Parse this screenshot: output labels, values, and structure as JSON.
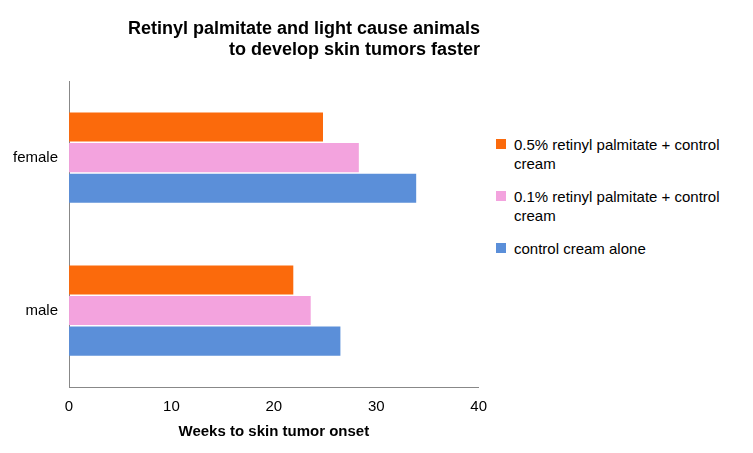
{
  "chart_data": {
    "type": "bar",
    "orientation": "horizontal",
    "title": [
      "Retinyl palmitate and light cause animals",
      "to develop skin tumors faster"
    ],
    "x_label": "Weeks to skin tumor onset",
    "categories": [
      "female",
      "male"
    ],
    "series": [
      {
        "name": "0.5% retinyl palmitate + control cream",
        "color": "#fb6a0c",
        "values": [
          24.8,
          21.9
        ]
      },
      {
        "name": "0.1% retinyl palmitate + control cream",
        "color": "#f3a3de",
        "values": [
          28.3,
          23.6
        ]
      },
      {
        "name": "control cream alone",
        "color": "#5b8fd9",
        "values": [
          33.9,
          26.5
        ]
      }
    ],
    "xlim": [
      0,
      40
    ],
    "xticks": [
      0,
      10,
      20,
      30,
      40
    ],
    "grid": false,
    "legend": "right"
  }
}
